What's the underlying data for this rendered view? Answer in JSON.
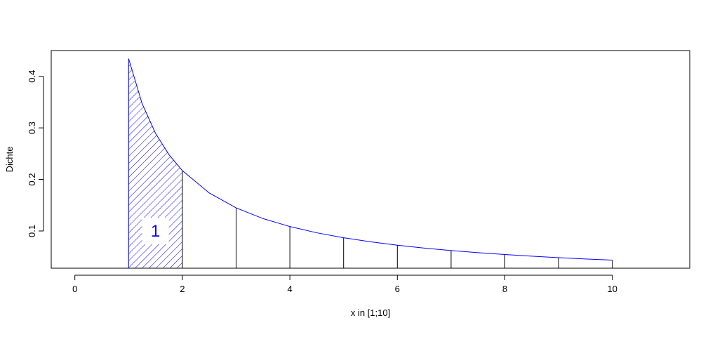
{
  "chart_data": {
    "type": "line",
    "x_label": "x in [1;10]",
    "y_label": "Dichte",
    "x": [
      1,
      1.25,
      1.5,
      1.75,
      2,
      2.5,
      3,
      3.5,
      4,
      4.5,
      5,
      5.5,
      6,
      6.5,
      7,
      7.5,
      8,
      8.5,
      9,
      9.5,
      10
    ],
    "series": [
      {
        "color": "#0000ff",
        "values": [
          0.4343,
          0.3474,
          0.2895,
          0.2482,
          0.2171,
          0.1737,
          0.1448,
          0.1241,
          0.1086,
          0.0965,
          0.0869,
          0.079,
          0.0724,
          0.0668,
          0.062,
          0.0579,
          0.0543,
          0.0511,
          0.0483,
          0.0457,
          0.0434
        ]
      }
    ],
    "dividers": [
      1,
      2,
      3,
      4,
      5,
      6,
      7,
      8,
      9,
      10
    ],
    "hatch": {
      "from": 1,
      "to": 2,
      "color": "#0000ff"
    },
    "annotation": {
      "text": "1",
      "x": 1.5,
      "y": 0.1
    },
    "xlim": [
      -0.44,
      11.44
    ],
    "ylim": [
      0.0278,
      0.45
    ],
    "xticks": [
      0,
      2,
      4,
      6,
      8,
      10
    ],
    "yticks": [
      0.1,
      0.2,
      0.3,
      0.4
    ]
  }
}
